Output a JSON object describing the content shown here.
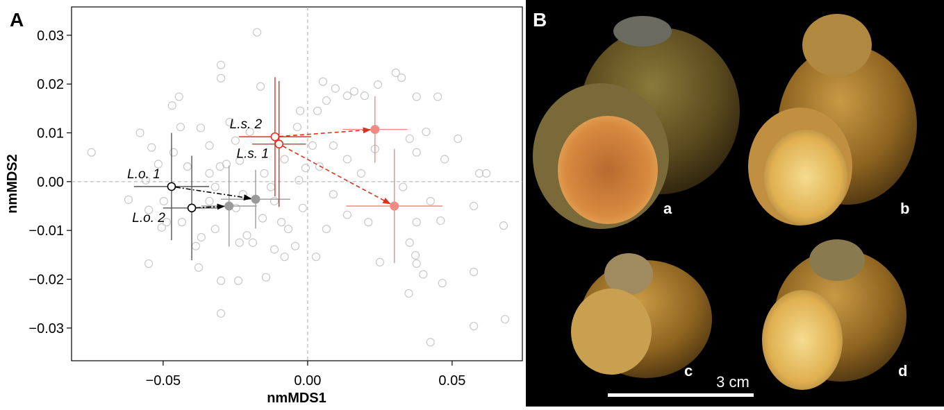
{
  "chart_data": {
    "type": "scatter",
    "panel_label": "A",
    "xlabel": "nmMDS1",
    "ylabel": "nmMDS2",
    "xlim": [
      -0.0817,
      0.0743
    ],
    "ylim": [
      -0.0367,
      0.0358
    ],
    "xticks": [
      {
        "value": -0.05,
        "label": "−0.05"
      },
      {
        "value": 0,
        "label": "0.00"
      },
      {
        "value": 0.05,
        "label": "0.05"
      }
    ],
    "yticks": [
      0.03,
      0.02,
      0.01,
      {
        "value": 0,
        "label": "0.00"
      },
      {
        "value": -0.01,
        "label": "−0.01"
      },
      {
        "value": -0.02,
        "label": "−0.02"
      },
      {
        "value": -0.03,
        "label": "−0.03"
      }
    ],
    "zero_lines": true,
    "points": {
      "color": "#c8c8c8",
      "x": [
        -0.0175,
        -0.03,
        -0.03,
        -0.0163,
        -0.0445,
        -0.0469,
        -0.0748,
        -0.058,
        -0.054,
        -0.044,
        -0.037,
        -0.034,
        -0.027,
        -0.025,
        -0.02,
        -0.0517,
        -0.056,
        -0.062,
        -0.055,
        -0.055,
        -0.0505,
        -0.0435,
        -0.0377,
        -0.034,
        -0.0303,
        -0.0281,
        -0.0235,
        -0.032,
        -0.034,
        -0.032,
        -0.03,
        -0.024,
        -0.03,
        -0.0368,
        -0.0236,
        -0.021,
        -0.0144,
        -0.015,
        -0.0127,
        -0.0156,
        -0.019,
        -0.008,
        -0.0067,
        -0.0043,
        -0.0017,
        -0.003,
        -0.008,
        -0.0026,
        -0.0036,
        0.0053,
        0.0034,
        0.0065,
        0.0096,
        0.0137,
        0.0161,
        0.0197,
        0.0243,
        0.0305,
        0.0325,
        0.0377,
        0.045,
        0.041,
        0.0474,
        0.052,
        0.0594,
        0.0618,
        0.0678,
        0.0575,
        0.0425,
        0.046,
        0.033,
        0.0377,
        0.0377,
        0.0353,
        0.025,
        0.0373,
        0.04,
        0.0466,
        0.035,
        0.0425,
        0.0575,
        0.0575,
        0.0683,
        0.0137,
        0.0185,
        0.0089,
        0.0137,
        0.021,
        0.0065,
        0.0029,
        0.0089,
        0.0233,
        0.0377,
        0.0353,
        0.0017,
        0.0041,
        -0.0007,
        -0.0248,
        -0.0224,
        -0.0115,
        -0.0091,
        -0.0115,
        -0.0464,
        -0.0488,
        -0.0416,
        -0.0387,
        -0.0498
      ],
      "y": [
        0.0306,
        0.0239,
        0.0212,
        0.0195,
        0.0174,
        0.0156,
        0.006,
        0.01,
        0.007,
        0.0112,
        0.011,
        0.0074,
        0.0122,
        0.0084,
        0.0102,
        0.0036,
        0.0003,
        -0.0037,
        -0.0058,
        -0.0168,
        -0.0094,
        -0.0083,
        -0.0176,
        0.0017,
        0.0031,
        0.0036,
        0.0043,
        -0.0011,
        -0.004,
        -0.0097,
        -0.0203,
        -0.0203,
        -0.027,
        -0.0114,
        -0.0125,
        -0.011,
        -0.0196,
        0.0017,
        -0.0011,
        -0.0075,
        -0.0125,
        -0.0154,
        -0.0097,
        -0.0132,
        -0.0054,
        0.0003,
        0.0046,
        0.0145,
        0.0112,
        0.0205,
        0.0145,
        0.0166,
        0.0191,
        0.0176,
        0.0185,
        0.0176,
        0.0199,
        0.0223,
        0.0213,
        0.0174,
        0.0174,
        0.0102,
        0.0046,
        0.0088,
        0.0017,
        0.0017,
        -0.009,
        -0.005,
        -0.004,
        -0.008,
        -0.0011,
        -0.0083,
        -0.0168,
        -0.0125,
        -0.0165,
        -0.0151,
        -0.019,
        -0.0208,
        -0.0229,
        -0.0329,
        -0.0185,
        -0.0296,
        -0.0282,
        0.0046,
        0.0017,
        -0.0026,
        -0.0068,
        -0.0083,
        -0.0097,
        -0.0154,
        0.0074,
        0.0067,
        0.006,
        0.0088,
        0.0074,
        0.0031,
        0.0028,
        -0.0054,
        -0.0026,
        -0.004,
        -0.0083,
        -0.0139,
        0.006,
        -0.0083,
        0.0031,
        -0.0132,
        -0.004
      ]
    },
    "groups": [
      {
        "name": "L.o. 1",
        "color": "#000000",
        "end_color": "#9a9a9a",
        "line_style": "dashdot",
        "start": {
          "x": -0.0471,
          "y": -0.001,
          "xerr": 0.013,
          "yerr": 0.011
        },
        "end": {
          "x": -0.018,
          "y": -0.0036,
          "xerr": 0.012,
          "yerr": 0.006
        }
      },
      {
        "name": "L.o. 2",
        "color": "#000000",
        "end_color": "#9a9a9a",
        "line_style": "dashdot",
        "start": {
          "x": -0.0401,
          "y": -0.0054,
          "xerr": 0.0099,
          "yerr": 0.0107
        },
        "end": {
          "x": -0.0272,
          "y": -0.005,
          "xerr": 0.0096,
          "yerr": 0.0083
        }
      },
      {
        "name": "L.s. 2",
        "color": "#e0301e",
        "end_color": "#f08a84",
        "line_style": "dashed",
        "start": {
          "x": -0.0113,
          "y": 0.0092,
          "xerr": 0.0125,
          "yerr": 0.0122
        },
        "end": {
          "x": 0.0233,
          "y": 0.0107,
          "xerr": 0.0112,
          "yerr": 0.0068
        }
      },
      {
        "name": "L.s. 1",
        "color": "#e0301e",
        "end_color": "#f08a84",
        "line_style": "dashed",
        "start": {
          "x": -0.0099,
          "y": 0.0077,
          "xerr": 0.0093,
          "yerr": 0.0129
        },
        "end": {
          "x": 0.03,
          "y": -0.005,
          "xerr": 0.0167,
          "yerr": 0.0117
        }
      }
    ]
  },
  "photo_panel": {
    "label": "B",
    "specimens": [
      "a",
      "b",
      "c",
      "d"
    ],
    "scale_bar": "3 cm"
  }
}
